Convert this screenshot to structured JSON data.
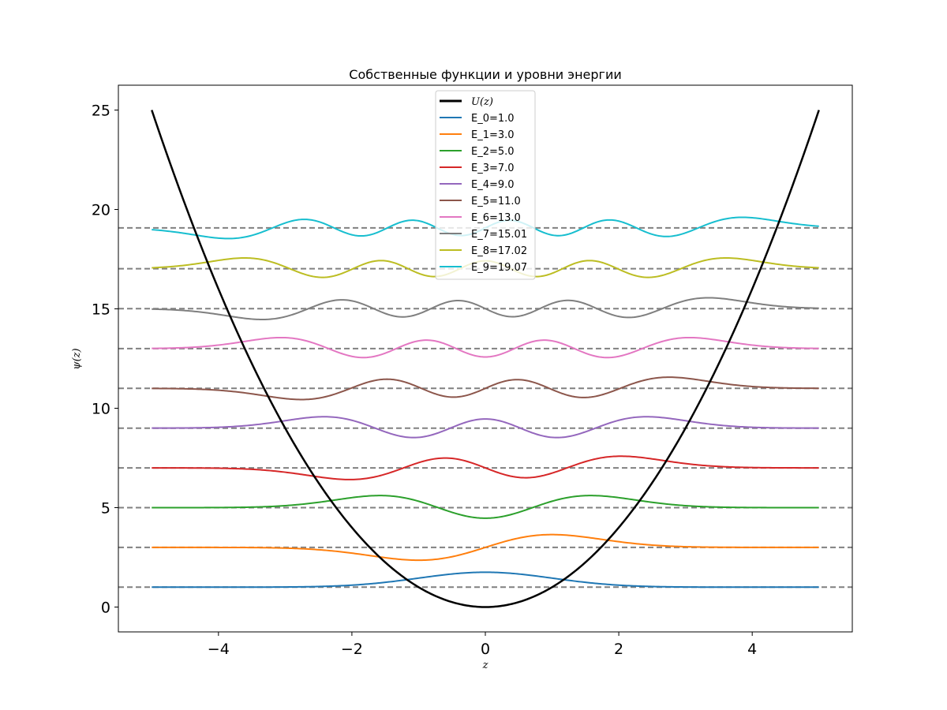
{
  "chart_data": {
    "type": "line",
    "title": "Собственные функции и уровни энергии",
    "xlabel": "z",
    "ylabel": "ψ(z)",
    "xlim": [
      -5.5,
      5.5
    ],
    "ylim": [
      -1.25,
      26.25
    ],
    "xticks": [
      {
        "value": -4,
        "label": "−4"
      },
      {
        "value": -2,
        "label": "−2"
      },
      {
        "value": 0,
        "label": "0"
      },
      {
        "value": 2,
        "label": "2"
      },
      {
        "value": 4,
        "label": "4"
      }
    ],
    "yticks": [
      {
        "value": 0,
        "label": "0"
      },
      {
        "value": 5,
        "label": "5"
      },
      {
        "value": 10,
        "label": "10"
      },
      {
        "value": 15,
        "label": "15"
      },
      {
        "value": 20,
        "label": "20"
      },
      {
        "value": 25,
        "label": "25"
      }
    ],
    "grid": false,
    "legend_position": "top-center",
    "potential": {
      "name": "U(z)",
      "formula": "z^2",
      "x_range": [
        -5,
        5
      ],
      "color": "#000000"
    },
    "series": [
      {
        "name": "E_0=1.0",
        "n": 0,
        "energy": 1.0,
        "color": "#1f77b4"
      },
      {
        "name": "E_1=3.0",
        "n": 1,
        "energy": 3.0,
        "color": "#ff7f0e"
      },
      {
        "name": "E_2=5.0",
        "n": 2,
        "energy": 5.0,
        "color": "#2ca02c"
      },
      {
        "name": "E_3=7.0",
        "n": 3,
        "energy": 7.0,
        "color": "#d62728"
      },
      {
        "name": "E_4=9.0",
        "n": 4,
        "energy": 9.0,
        "color": "#9467bd"
      },
      {
        "name": "E_5=11.0",
        "n": 5,
        "energy": 11.0,
        "color": "#8c564b"
      },
      {
        "name": "E_6=13.0",
        "n": 6,
        "energy": 13.0,
        "color": "#e377c2"
      },
      {
        "name": "E_7=15.01",
        "n": 7,
        "energy": 15.01,
        "color": "#7f7f7f"
      },
      {
        "name": "E_8=17.02",
        "n": 8,
        "energy": 17.02,
        "color": "#bcbd22"
      },
      {
        "name": "E_9=19.07",
        "n": 9,
        "energy": 19.07,
        "color": "#17becf"
      }
    ],
    "energy_lines": {
      "style": "dashed",
      "color": "#808080"
    }
  }
}
